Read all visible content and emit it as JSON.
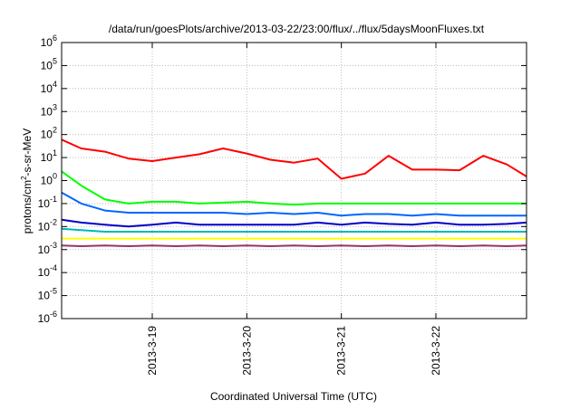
{
  "chart_data": {
    "type": "line",
    "title": "/data/run/goesPlots/archive/2013-03-22/23:00/flux/../flux/5daysMoonFluxes.txt",
    "xlabel": "Coordinated Universal Time (UTC)",
    "ylabel": {
      "base": "protons/cm",
      "sup": "2",
      "rest": "-s-sr-MeV"
    },
    "y_scale": "log",
    "ylim": [
      1e-06,
      1000000.0
    ],
    "y_ticks": [
      {
        "base": "10",
        "exp": "-6",
        "value": 1e-06
      },
      {
        "base": "10",
        "exp": "-5",
        "value": 1e-05
      },
      {
        "base": "10",
        "exp": "-4",
        "value": 0.0001
      },
      {
        "base": "10",
        "exp": "-3",
        "value": 0.001
      },
      {
        "base": "10",
        "exp": "-2",
        "value": 0.01
      },
      {
        "base": "10",
        "exp": "-1",
        "value": 0.1
      },
      {
        "base": "10",
        "exp": "0",
        "value": 1.0
      },
      {
        "base": "10",
        "exp": "1",
        "value": 10.0
      },
      {
        "base": "10",
        "exp": "2",
        "value": 100.0
      },
      {
        "base": "10",
        "exp": "3",
        "value": 1000.0
      },
      {
        "base": "10",
        "exp": "4",
        "value": 10000.0
      },
      {
        "base": "10",
        "exp": "5",
        "value": 100000.0
      },
      {
        "base": "10",
        "exp": "6",
        "value": 1000000.0
      }
    ],
    "xlim": [
      "2013-03-18 01:00",
      "2013-03-22 23:00"
    ],
    "x_ticks": [
      "2013-3-19",
      "2013-3-20",
      "2013-3-21",
      "2013-3-22"
    ],
    "grid": true,
    "legend": "none",
    "x": [
      "2013-03-18 01:00",
      "2013-03-18 06:00",
      "2013-03-18 12:00",
      "2013-03-18 18:00",
      "2013-03-19 00:00",
      "2013-03-19 06:00",
      "2013-03-19 12:00",
      "2013-03-19 18:00",
      "2013-03-20 00:00",
      "2013-03-20 06:00",
      "2013-03-20 12:00",
      "2013-03-20 18:00",
      "2013-03-21 00:00",
      "2013-03-21 06:00",
      "2013-03-21 12:00",
      "2013-03-21 18:00",
      "2013-03-22 00:00",
      "2013-03-22 06:00",
      "2013-03-22 12:00",
      "2013-03-22 18:00",
      "2013-03-22 23:00"
    ],
    "series": [
      {
        "color": "#ff0000",
        "values": [
          60,
          25,
          18,
          9,
          7,
          10,
          14,
          25,
          15,
          8,
          6,
          9,
          1.2,
          2,
          12,
          3,
          3,
          2.8,
          12,
          5,
          1.5
        ]
      },
      {
        "color": "#00ff00",
        "values": [
          2.5,
          0.6,
          0.15,
          0.1,
          0.12,
          0.12,
          0.1,
          0.11,
          0.12,
          0.1,
          0.09,
          0.1,
          0.1,
          0.1,
          0.1,
          0.1,
          0.1,
          0.1,
          0.1,
          0.1,
          0.1
        ]
      },
      {
        "color": "#0066ff",
        "values": [
          0.3,
          0.1,
          0.05,
          0.04,
          0.04,
          0.04,
          0.04,
          0.04,
          0.035,
          0.04,
          0.035,
          0.04,
          0.03,
          0.035,
          0.035,
          0.03,
          0.035,
          0.03,
          0.03,
          0.03,
          0.03
        ]
      },
      {
        "color": "#0000cc",
        "values": [
          0.02,
          0.015,
          0.012,
          0.01,
          0.012,
          0.015,
          0.012,
          0.012,
          0.012,
          0.012,
          0.012,
          0.015,
          0.012,
          0.015,
          0.013,
          0.012,
          0.015,
          0.012,
          0.012,
          0.013,
          0.015
        ]
      },
      {
        "color": "#00b8b8",
        "values": [
          0.008,
          0.007,
          0.006,
          0.006,
          0.006,
          0.006,
          0.006,
          0.006,
          0.006,
          0.006,
          0.006,
          0.006,
          0.006,
          0.006,
          0.006,
          0.006,
          0.006,
          0.006,
          0.006,
          0.006,
          0.006
        ]
      },
      {
        "color": "#ffff00",
        "values": [
          0.003,
          0.003,
          0.003,
          0.003,
          0.003,
          0.003,
          0.003,
          0.003,
          0.003,
          0.003,
          0.003,
          0.003,
          0.003,
          0.003,
          0.003,
          0.003,
          0.003,
          0.003,
          0.003,
          0.003,
          0.003
        ]
      },
      {
        "color": "#993366",
        "values": [
          0.0015,
          0.0014,
          0.0015,
          0.0014,
          0.0015,
          0.0014,
          0.0015,
          0.0014,
          0.0015,
          0.0014,
          0.0015,
          0.0014,
          0.0015,
          0.0014,
          0.0015,
          0.0014,
          0.0015,
          0.0014,
          0.0015,
          0.0014,
          0.0015
        ]
      }
    ]
  }
}
